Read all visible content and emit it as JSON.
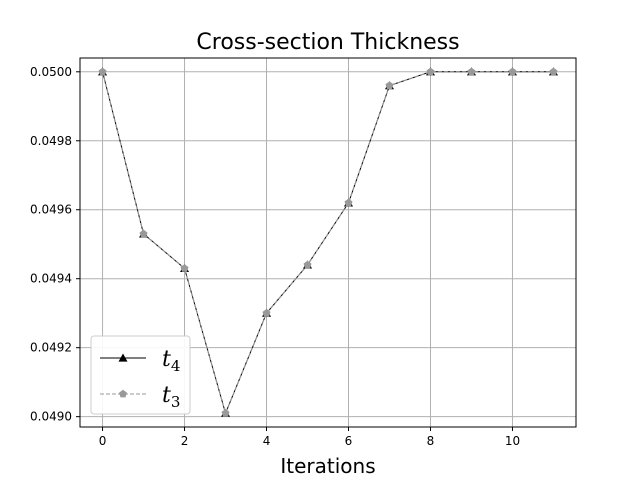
{
  "chart_data": {
    "type": "line",
    "title": "Cross-section Thickness",
    "xlabel": "Iterations",
    "ylabel": "",
    "x": [
      0,
      1,
      2,
      3,
      4,
      5,
      6,
      7,
      8,
      9,
      10,
      11
    ],
    "xlim": [
      -0.55,
      11.55
    ],
    "ylim": [
      0.04897,
      0.05004
    ],
    "xticks": [
      0,
      2,
      4,
      6,
      8,
      10
    ],
    "xtick_labels": [
      "0",
      "2",
      "4",
      "6",
      "8",
      "10"
    ],
    "yticks": [
      0.049,
      0.0492,
      0.0494,
      0.0496,
      0.0498,
      0.05
    ],
    "ytick_labels": [
      "0.0490",
      "0.0492",
      "0.0494",
      "0.0496",
      "0.0498",
      "0.0500"
    ],
    "grid": true,
    "legend_position": "lower-left",
    "series": [
      {
        "name_base": "t",
        "name_sub": "4",
        "marker": "triangle-up",
        "line_style": "solid",
        "color": "#000000",
        "values": [
          0.05,
          0.04953,
          0.04943,
          0.04901,
          0.0493,
          0.04944,
          0.04962,
          0.04996,
          0.05,
          0.05,
          0.05,
          0.05
        ]
      },
      {
        "name_base": "t",
        "name_sub": "3",
        "marker": "pentagon",
        "line_style": "dashed",
        "color": "#999999",
        "values": [
          0.05,
          0.04953,
          0.04943,
          0.04901,
          0.0493,
          0.04944,
          0.04962,
          0.04996,
          0.05,
          0.05,
          0.05,
          0.05
        ]
      }
    ],
    "colors": {
      "grid": "#b0b0b0",
      "axes": "#000000",
      "legend_border": "#cccccc"
    }
  }
}
